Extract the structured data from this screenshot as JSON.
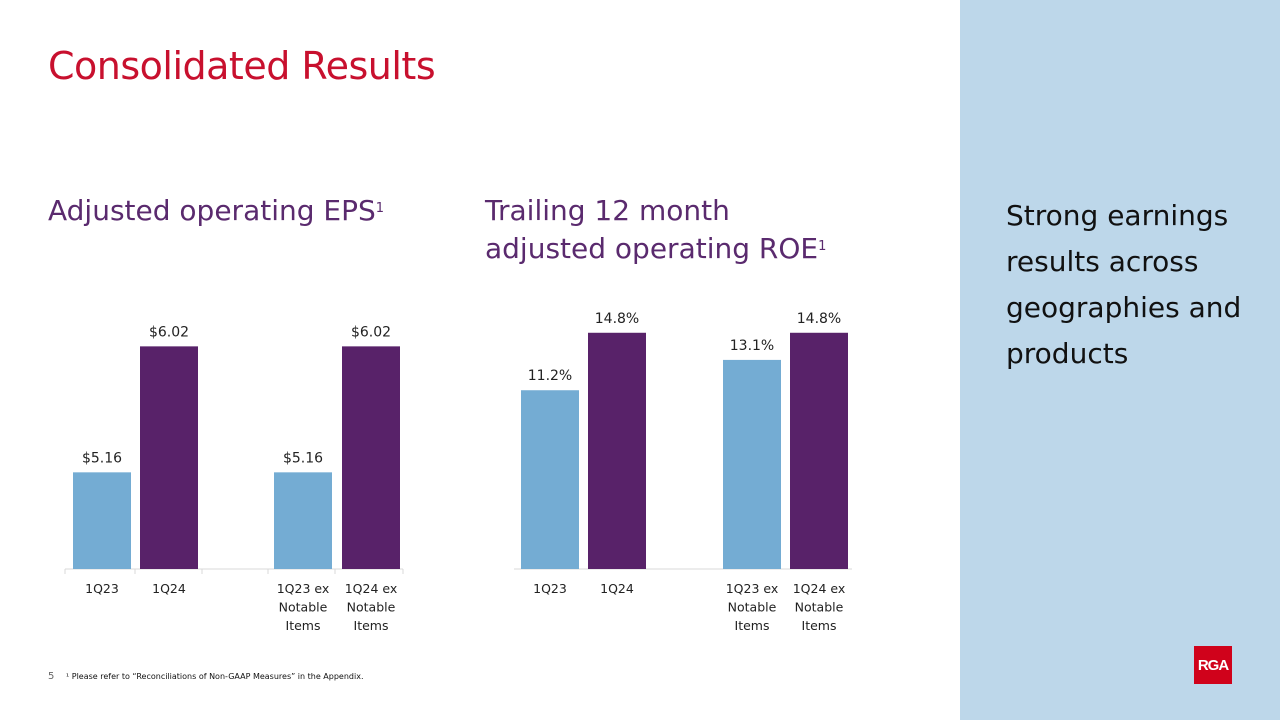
{
  "title": "Consolidated Results",
  "side_panel": {
    "text": "Strong earnings results across geographies and products",
    "logo": "RGA"
  },
  "footer": {
    "page_number": "5",
    "footnote": "¹ Please refer to “Reconciliations of Non-GAAP Measures” in the Appendix."
  },
  "colors": {
    "light_bar": "#74acd3",
    "dark_bar": "#582269",
    "title": "#c8102e",
    "subtitle": "#5a2a6e"
  },
  "chart_data": [
    {
      "id": "eps",
      "type": "bar",
      "title_lines": [
        "Adjusted operating EPS"
      ],
      "title_superscript": "1",
      "categories": [
        [
          "1Q23"
        ],
        [
          "1Q24"
        ],
        [
          "1Q23 ex",
          "Notable",
          "Items"
        ],
        [
          "1Q24 ex",
          "Notable",
          "Items"
        ]
      ],
      "values": [
        5.16,
        6.02,
        5.16,
        6.02
      ],
      "labels": [
        "$5.16",
        "$6.02",
        "$5.16",
        "$6.02"
      ],
      "ylim": [
        4.5,
        6.2
      ]
    },
    {
      "id": "roe",
      "type": "bar",
      "title_lines": [
        "Trailing 12 month",
        "adjusted operating ROE"
      ],
      "title_superscript": "1",
      "categories": [
        [
          "1Q23"
        ],
        [
          "1Q24"
        ],
        [
          "1Q23 ex",
          "Notable",
          "Items"
        ],
        [
          "1Q24 ex",
          "Notable",
          "Items"
        ]
      ],
      "values": [
        11.2,
        14.8,
        13.1,
        14.8
      ],
      "labels": [
        "11.2%",
        "14.8%",
        "13.1%",
        "14.8%"
      ],
      "ylim": [
        0,
        15.6
      ]
    }
  ]
}
